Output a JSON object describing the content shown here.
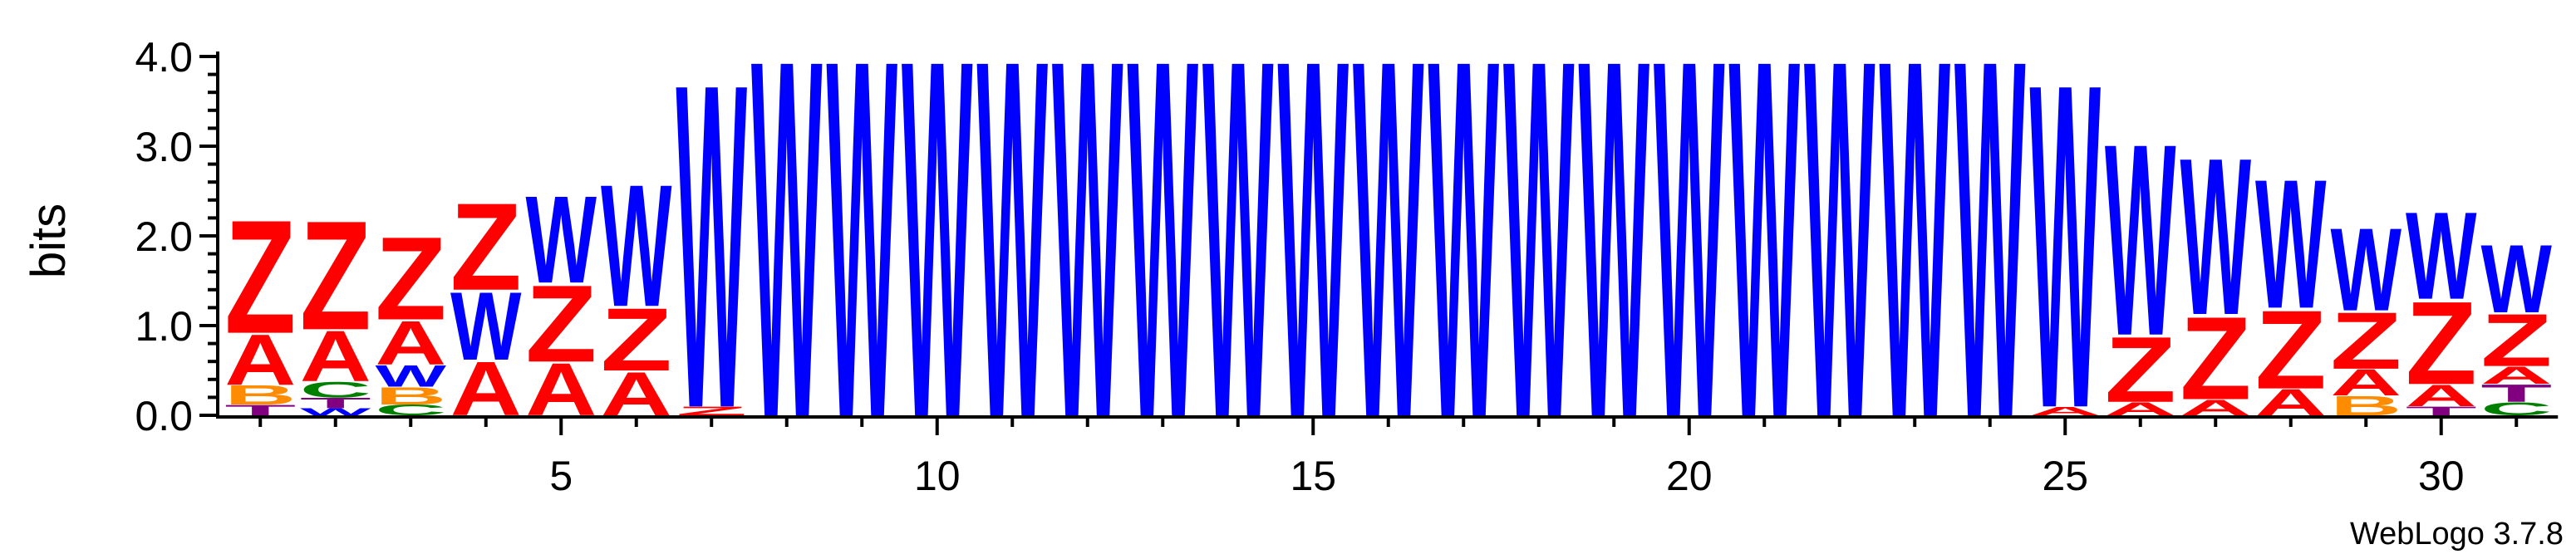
{
  "chart_data": {
    "type": "sequence-logo",
    "ylabel": "bits",
    "ylim": [
      0,
      4.0
    ],
    "yticks": [
      "0.0",
      "1.0",
      "2.0",
      "3.0",
      "4.0"
    ],
    "xticks": [
      "5",
      "10",
      "15",
      "20",
      "25",
      "30"
    ],
    "credit": "WebLogo 3.7.8",
    "colors": {
      "A": "#ff0000",
      "Z": "#ff0000",
      "W": "#0000ff",
      "B": "#ff8c00",
      "C": "#008000",
      "G": "#008000",
      "T": "#800080"
    },
    "positions": [
      {
        "pos": 1,
        "stack": [
          [
            "T",
            0.12
          ],
          [
            "B",
            0.22
          ],
          [
            "A",
            0.58
          ],
          [
            "Z",
            1.3
          ]
        ]
      },
      {
        "pos": 2,
        "stack": [
          [
            "W",
            0.08
          ],
          [
            "T",
            0.12
          ],
          [
            "C",
            0.18
          ],
          [
            "A",
            0.58
          ],
          [
            "Z",
            1.25
          ]
        ]
      },
      {
        "pos": 3,
        "stack": [
          [
            "C",
            0.12
          ],
          [
            "B",
            0.2
          ],
          [
            "W",
            0.25
          ],
          [
            "A",
            0.5
          ],
          [
            "Z",
            0.95
          ]
        ]
      },
      {
        "pos": 4,
        "stack": [
          [
            "A",
            0.62
          ],
          [
            "W",
            0.78
          ],
          [
            "Z",
            1.0
          ]
        ]
      },
      {
        "pos": 5,
        "stack": [
          [
            "A",
            0.6
          ],
          [
            "Z",
            0.88
          ],
          [
            "W",
            1.0
          ]
        ]
      },
      {
        "pos": 6,
        "stack": [
          [
            "A",
            0.5
          ],
          [
            "Z",
            0.72
          ],
          [
            "W",
            1.4
          ]
        ]
      },
      {
        "pos": 7,
        "stack": [
          [
            "Z",
            0.1
          ],
          [
            "W",
            3.72
          ]
        ]
      },
      {
        "pos": 8,
        "stack": [
          [
            "W",
            4.1
          ]
        ]
      },
      {
        "pos": 9,
        "stack": [
          [
            "W",
            4.1
          ]
        ]
      },
      {
        "pos": 10,
        "stack": [
          [
            "W",
            4.1
          ]
        ]
      },
      {
        "pos": 11,
        "stack": [
          [
            "W",
            4.1
          ]
        ]
      },
      {
        "pos": 12,
        "stack": [
          [
            "W",
            4.1
          ]
        ]
      },
      {
        "pos": 13,
        "stack": [
          [
            "W",
            4.1
          ]
        ]
      },
      {
        "pos": 14,
        "stack": [
          [
            "W",
            4.1
          ]
        ]
      },
      {
        "pos": 15,
        "stack": [
          [
            "W",
            4.1
          ]
        ]
      },
      {
        "pos": 16,
        "stack": [
          [
            "W",
            4.1
          ]
        ]
      },
      {
        "pos": 17,
        "stack": [
          [
            "W",
            4.1
          ]
        ]
      },
      {
        "pos": 18,
        "stack": [
          [
            "W",
            4.1
          ]
        ]
      },
      {
        "pos": 19,
        "stack": [
          [
            "W",
            4.1
          ]
        ]
      },
      {
        "pos": 20,
        "stack": [
          [
            "W",
            4.1
          ]
        ]
      },
      {
        "pos": 21,
        "stack": [
          [
            "W",
            4.1
          ]
        ]
      },
      {
        "pos": 22,
        "stack": [
          [
            "W",
            4.1
          ]
        ]
      },
      {
        "pos": 23,
        "stack": [
          [
            "W",
            4.1
          ]
        ]
      },
      {
        "pos": 24,
        "stack": [
          [
            "W",
            4.1
          ]
        ]
      },
      {
        "pos": 25,
        "stack": [
          [
            "A",
            0.1
          ],
          [
            "W",
            3.72
          ]
        ]
      },
      {
        "pos": 26,
        "stack": [
          [
            "A",
            0.15
          ],
          [
            "Z",
            0.75
          ],
          [
            "W",
            2.2
          ]
        ]
      },
      {
        "pos": 27,
        "stack": [
          [
            "A",
            0.18
          ],
          [
            "Z",
            0.95
          ],
          [
            "W",
            1.8
          ]
        ]
      },
      {
        "pos": 28,
        "stack": [
          [
            "A",
            0.3
          ],
          [
            "Z",
            0.9
          ],
          [
            "W",
            1.48
          ]
        ]
      },
      {
        "pos": 29,
        "stack": [
          [
            "B",
            0.22
          ],
          [
            "A",
            0.3
          ],
          [
            "Z",
            0.65
          ],
          [
            "W",
            0.95
          ]
        ]
      },
      {
        "pos": 30,
        "stack": [
          [
            "T",
            0.1
          ],
          [
            "A",
            0.25
          ],
          [
            "Z",
            0.95
          ],
          [
            "W",
            1.0
          ]
        ]
      },
      {
        "pos": 31,
        "stack": [
          [
            "C",
            0.15
          ],
          [
            "T",
            0.2
          ],
          [
            "A",
            0.2
          ],
          [
            "Z",
            0.6
          ],
          [
            "W",
            0.78
          ]
        ]
      }
    ]
  }
}
